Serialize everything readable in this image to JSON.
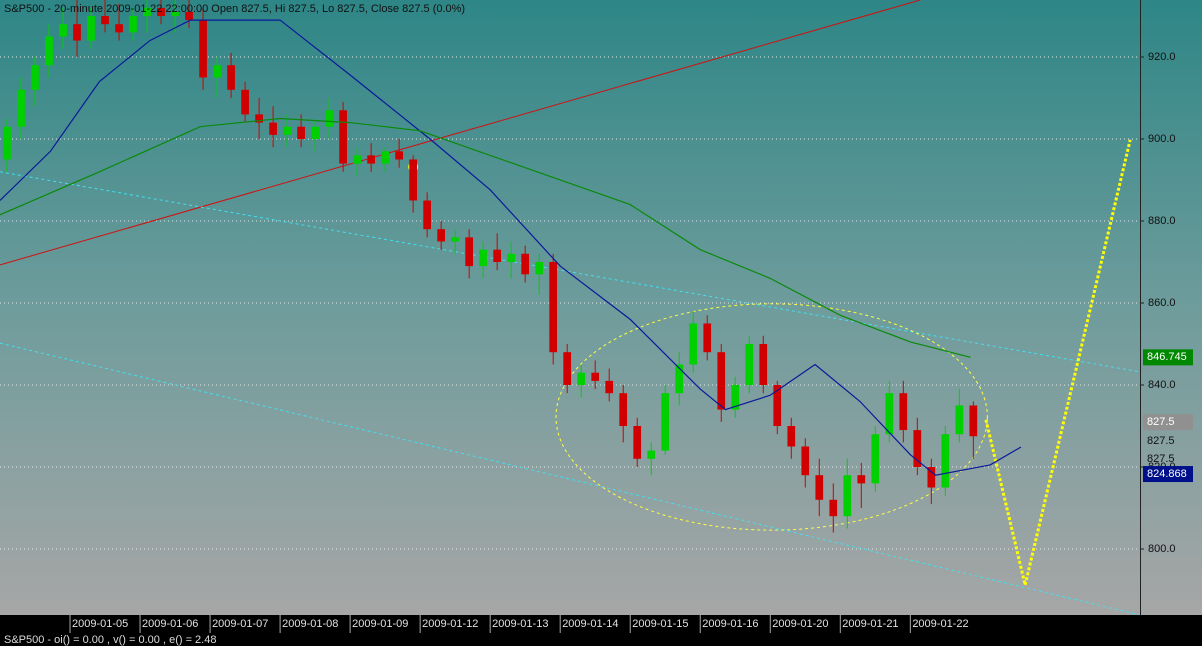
{
  "chart_data": {
    "type": "candlestick",
    "title": "S&P500 - 20-minute 2009-01-22 22:00:00 Open 827.5, Hi 827.5, Lo 827.5, Close 827.5 (0.0%)",
    "footer": "S&P500 - oi() = 0.00 , v() = 0.00 , e() = 2.48",
    "xlim": [
      0,
      81.4
    ],
    "ylim": [
      783.9,
      933.9
    ],
    "xticks": [
      {
        "value": 5,
        "label": "2009-01-05"
      },
      {
        "value": 10,
        "label": "2009-01-06"
      },
      {
        "value": 15,
        "label": "2009-01-07"
      },
      {
        "value": 20,
        "label": "2009-01-08"
      },
      {
        "value": 25,
        "label": "2009-01-09"
      },
      {
        "value": 30,
        "label": "2009-01-12"
      },
      {
        "value": 35,
        "label": "2009-01-13"
      },
      {
        "value": 40,
        "label": "2009-01-14"
      },
      {
        "value": 45,
        "label": "2009-01-15"
      },
      {
        "value": 50,
        "label": "2009-01-16"
      },
      {
        "value": 55,
        "label": "2009-01-20"
      },
      {
        "value": 60,
        "label": "2009-01-21"
      },
      {
        "value": 65,
        "label": "2009-01-22"
      }
    ],
    "yticks": [
      {
        "value": 800,
        "label": "800.0"
      },
      {
        "value": 820,
        "label": "820.0"
      },
      {
        "value": 840,
        "label": "840.0"
      },
      {
        "value": 860,
        "label": "860.0"
      },
      {
        "value": 880,
        "label": "880.0"
      },
      {
        "value": 900,
        "label": "900.0"
      },
      {
        "value": 920,
        "label": "920.0"
      }
    ],
    "grid": true,
    "up_color": "#00d000",
    "down_color": "#d00000",
    "open": [
      895,
      903,
      912,
      918,
      925,
      928,
      924,
      930,
      928,
      926,
      930,
      932,
      930,
      931,
      929,
      915,
      918,
      912,
      906,
      904,
      901,
      903,
      900,
      903,
      907,
      894,
      896,
      894,
      897,
      895,
      885,
      878,
      875,
      876,
      869,
      873,
      870,
      872,
      867,
      870,
      848,
      840,
      843,
      841,
      838,
      830,
      822,
      824,
      838,
      845,
      855,
      848,
      834,
      840,
      850,
      840,
      830,
      825,
      818,
      812,
      808,
      818,
      816,
      828,
      838,
      829,
      820,
      815,
      828,
      835
    ],
    "high": [
      905,
      915,
      920,
      928,
      932,
      934,
      932,
      934,
      933,
      932,
      935,
      936,
      934,
      935,
      932,
      920,
      921,
      914,
      910,
      908,
      906,
      906,
      905,
      910,
      909,
      898,
      899,
      898,
      900,
      896,
      887,
      880,
      878,
      878,
      875,
      877,
      875,
      874,
      872,
      872,
      850,
      845,
      846,
      844,
      840,
      832,
      826,
      840,
      848,
      858,
      857,
      850,
      842,
      852,
      852,
      841,
      832,
      827,
      822,
      816,
      822,
      821,
      830,
      841,
      841,
      832,
      822,
      830,
      839,
      836
    ],
    "low": [
      892,
      900,
      908,
      915,
      922,
      920,
      922,
      926,
      924,
      924,
      926,
      928,
      926,
      927,
      912,
      910,
      910,
      904,
      900,
      898,
      898,
      898,
      897,
      900,
      892,
      891,
      892,
      892,
      893,
      882,
      876,
      873,
      872,
      866,
      866,
      868,
      866,
      865,
      862,
      845,
      838,
      837,
      839,
      836,
      826,
      820,
      818,
      823,
      835,
      843,
      846,
      831,
      832,
      838,
      838,
      828,
      822,
      815,
      808,
      804,
      805,
      810,
      814,
      826,
      826,
      818,
      811,
      813,
      826,
      822
    ],
    "close": [
      903,
      912,
      918,
      925,
      928,
      924,
      930,
      928,
      926,
      930,
      932,
      930,
      931,
      929,
      915,
      918,
      912,
      906,
      904,
      901,
      903,
      900,
      903,
      907,
      894,
      896,
      894,
      897,
      895,
      885,
      878,
      875,
      876,
      869,
      873,
      870,
      872,
      867,
      870,
      848,
      840,
      843,
      841,
      838,
      830,
      822,
      824,
      838,
      845,
      855,
      848,
      834,
      840,
      850,
      840,
      830,
      825,
      818,
      812,
      808,
      818,
      816,
      828,
      838,
      829,
      820,
      815,
      828,
      835,
      827.5
    ],
    "series": [
      {
        "color": "#0a1a9a",
        "x": [
          0,
          3.6,
          7.1,
          10.7,
          13.6,
          20,
          25,
          30.7,
          35,
          40,
          45,
          50,
          51.8,
          55,
          58.2,
          61.4,
          65,
          66.8,
          70.7,
          72.9
        ],
        "values": [
          885,
          897,
          914,
          924,
          929,
          929,
          915.6,
          900,
          887.6,
          869,
          856,
          839,
          834,
          837.5,
          845,
          836,
          823,
          818,
          820.5,
          824.868
        ]
      },
      {
        "color": "#0a8a0a",
        "x": [
          0,
          7.1,
          14.3,
          20,
          25,
          30,
          35,
          40,
          45,
          50,
          55,
          60,
          65,
          69.3
        ],
        "values": [
          881.5,
          892,
          903,
          905,
          904,
          902,
          896,
          890,
          884,
          873,
          866,
          857,
          850.5,
          846.745
        ]
      }
    ],
    "price_labels": [
      {
        "value": 846.745,
        "color": "#008800"
      },
      {
        "value": 827.5,
        "color": "#909090"
      },
      {
        "value": 827.5,
        "color": "none"
      },
      {
        "value": 827.5,
        "color": "none"
      },
      {
        "value": 824.868,
        "color": "#00108a"
      }
    ],
    "lines": [
      {
        "color": "#d01010",
        "dash": "none",
        "points": [
          [
            0,
            869.3
          ],
          [
            65.7,
            933.9
          ]
        ]
      },
      {
        "color": "#40e0f0",
        "dash": "3,3",
        "points": [
          [
            0,
            892
          ],
          [
            81.4,
            843.2
          ]
        ]
      },
      {
        "color": "#40e0f0",
        "dash": "3,3",
        "points": [
          [
            0,
            850.2
          ],
          [
            81.4,
            783.9
          ]
        ]
      },
      {
        "color": "#ffff00",
        "dash": "3,2",
        "width": 3,
        "points": [
          [
            70.4,
            831.5
          ],
          [
            73.2,
            791.2
          ],
          [
            80.7,
            899.8
          ]
        ]
      }
    ],
    "ellipse": {
      "cx": 55.1,
      "cy": 832.2,
      "rx": 15.4,
      "ry": 27.6,
      "color": "#ffff40"
    },
    "marker": {
      "x": 29.5,
      "y": 893.2,
      "color": "#ffff00"
    }
  }
}
